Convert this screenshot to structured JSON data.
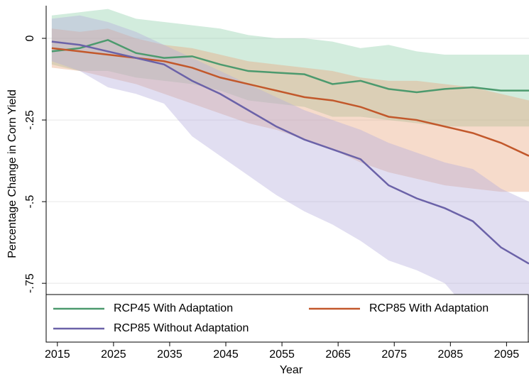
{
  "chart_data": {
    "type": "line",
    "x_label": "Year",
    "y_label": "Percentage Change in Corn Yield",
    "x": [
      2014,
      2019,
      2024,
      2029,
      2034,
      2039,
      2044,
      2049,
      2054,
      2059,
      2064,
      2069,
      2074,
      2079,
      2084,
      2089,
      2094,
      2099
    ],
    "xlim": [
      2013,
      2099
    ],
    "xticks": [
      2015,
      2025,
      2035,
      2045,
      2055,
      2065,
      2075,
      2085,
      2095
    ],
    "ylim": [
      -0.93,
      0.1
    ],
    "yticks": [
      {
        "value": -0.75,
        "label": "-.75"
      },
      {
        "value": -0.5,
        "label": "-.5"
      },
      {
        "value": -0.25,
        "label": "-.25"
      },
      {
        "value": 0,
        "label": "0"
      }
    ],
    "grid": true,
    "legend": "bottom",
    "series": [
      {
        "name": "RCP45 With Adaptation",
        "color": "#4c9a6e",
        "band_color": "#8fcfaa",
        "values": [
          -0.04,
          -0.03,
          -0.005,
          -0.045,
          -0.06,
          -0.055,
          -0.08,
          -0.1,
          -0.105,
          -0.11,
          -0.14,
          -0.13,
          -0.155,
          -0.165,
          -0.155,
          -0.15,
          -0.16,
          -0.16
        ],
        "upper": [
          0.07,
          0.08,
          0.09,
          0.06,
          0.05,
          0.04,
          0.03,
          0.01,
          0,
          0,
          -0.01,
          -0.03,
          -0.02,
          -0.04,
          -0.05,
          -0.05,
          -0.05,
          -0.05
        ],
        "lower": [
          -0.08,
          -0.1,
          -0.1,
          -0.12,
          -0.13,
          -0.14,
          -0.16,
          -0.19,
          -0.2,
          -0.21,
          -0.24,
          -0.24,
          -0.25,
          -0.26,
          -0.27,
          -0.27,
          -0.27,
          -0.27
        ]
      },
      {
        "name": "RCP85 With Adaptation",
        "color": "#c2582b",
        "band_color": "#e9a57e",
        "values": [
          -0.03,
          -0.04,
          -0.05,
          -0.06,
          -0.07,
          -0.09,
          -0.12,
          -0.14,
          -0.16,
          -0.18,
          -0.19,
          -0.21,
          -0.24,
          -0.25,
          -0.27,
          -0.29,
          -0.32,
          -0.36
        ],
        "upper": [
          0.03,
          0.02,
          0.03,
          0,
          -0.02,
          -0.03,
          -0.05,
          -0.07,
          -0.08,
          -0.09,
          -0.1,
          -0.12,
          -0.13,
          -0.13,
          -0.14,
          -0.15,
          -0.17,
          -0.19
        ],
        "lower": [
          -0.09,
          -0.1,
          -0.12,
          -0.14,
          -0.17,
          -0.2,
          -0.23,
          -0.26,
          -0.28,
          -0.31,
          -0.34,
          -0.38,
          -0.41,
          -0.43,
          -0.45,
          -0.46,
          -0.47,
          -0.47
        ]
      },
      {
        "name": "RCP85 Without Adaptation",
        "color": "#6b62a8",
        "band_color": "#b3acdb",
        "values": [
          -0.01,
          -0.02,
          -0.04,
          -0.06,
          -0.08,
          -0.13,
          -0.17,
          -0.22,
          -0.27,
          -0.31,
          -0.34,
          -0.37,
          -0.45,
          -0.49,
          -0.52,
          -0.56,
          -0.64,
          -0.69
        ],
        "upper": [
          0.06,
          0.07,
          0.05,
          0.02,
          -0.02,
          -0.06,
          -0.1,
          -0.14,
          -0.18,
          -0.22,
          -0.25,
          -0.28,
          -0.32,
          -0.35,
          -0.38,
          -0.4,
          -0.46,
          -0.5
        ],
        "lower": [
          -0.07,
          -0.1,
          -0.15,
          -0.17,
          -0.2,
          -0.3,
          -0.36,
          -0.42,
          -0.48,
          -0.53,
          -0.57,
          -0.62,
          -0.68,
          -0.71,
          -0.75,
          -0.85,
          -0.9,
          -0.9
        ]
      }
    ]
  }
}
